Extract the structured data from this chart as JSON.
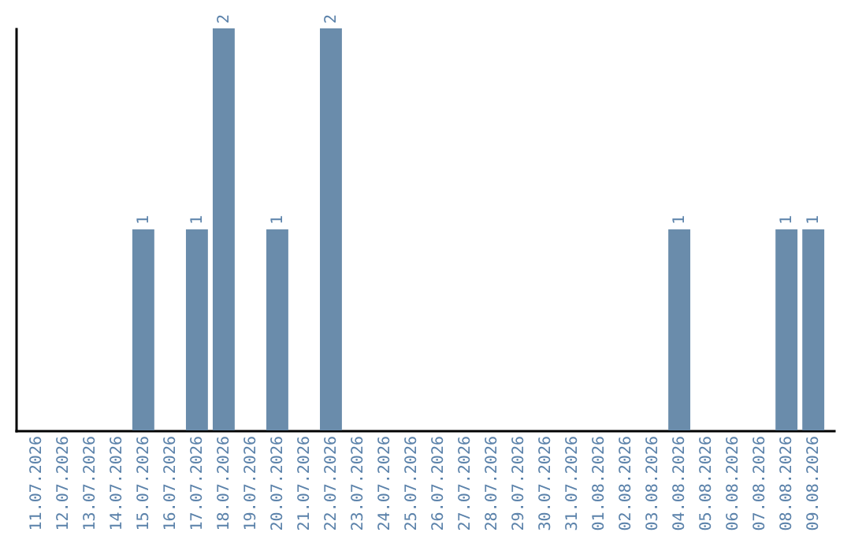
{
  "chart_data": {
    "type": "bar",
    "categories": [
      "11.07.2026",
      "12.07.2026",
      "13.07.2026",
      "14.07.2026",
      "15.07.2026",
      "16.07.2026",
      "17.07.2026",
      "18.07.2026",
      "19.07.2026",
      "20.07.2026",
      "21.07.2026",
      "22.07.2026",
      "23.07.2026",
      "24.07.2026",
      "25.07.2026",
      "26.07.2026",
      "27.07.2026",
      "28.07.2026",
      "29.07.2026",
      "30.07.2026",
      "31.07.2026",
      "01.08.2026",
      "02.08.2026",
      "03.08.2026",
      "04.08.2026",
      "05.08.2026",
      "06.08.2026",
      "07.08.2026",
      "08.08.2026",
      "09.08.2026"
    ],
    "values": [
      0,
      0,
      0,
      0,
      1,
      0,
      1,
      2,
      0,
      1,
      0,
      2,
      0,
      0,
      0,
      0,
      0,
      0,
      0,
      0,
      0,
      0,
      0,
      0,
      1,
      0,
      0,
      0,
      1,
      1
    ],
    "value_labels": [
      null,
      null,
      null,
      null,
      "1",
      null,
      "1",
      "2",
      null,
      "1",
      null,
      "2",
      null,
      null,
      null,
      null,
      null,
      null,
      null,
      null,
      null,
      null,
      null,
      null,
      "1",
      null,
      null,
      null,
      "1",
      "1"
    ],
    "color": "#6a8cab",
    "ylim": [
      0,
      2
    ],
    "tick_labels": "x",
    "grid": false
  }
}
